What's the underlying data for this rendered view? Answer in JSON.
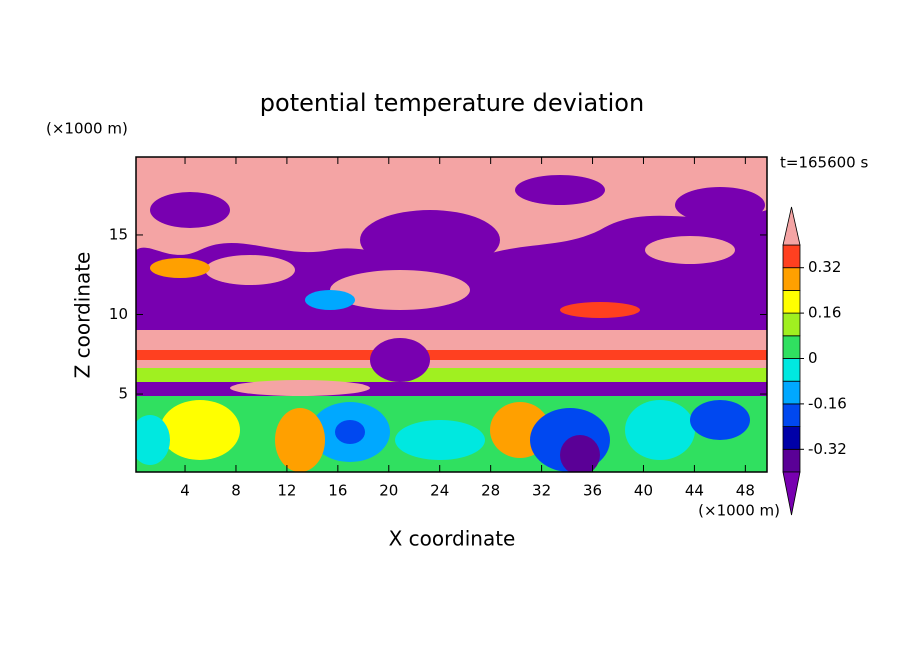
{
  "chart_data": {
    "type": "contour",
    "title": "potential temperature deviation",
    "xlabel": "X coordinate",
    "ylabel": "Z coordinate",
    "x_unit": "(×1000 m)",
    "y_unit": "(×1000 m)",
    "time_label": "t=165600 s",
    "xlim": [
      0.15,
      49.7
    ],
    "ylim": [
      0.1,
      19.9
    ],
    "xticks": [
      4,
      8,
      12,
      16,
      20,
      24,
      28,
      32,
      36,
      40,
      44,
      48
    ],
    "yticks": [
      5,
      10,
      15
    ],
    "levels": [
      -0.4,
      -0.32,
      -0.24,
      -0.16,
      -0.08,
      0,
      0.08,
      0.16,
      0.24,
      0.32,
      0.4
    ],
    "level_colors": [
      "#5a0096",
      "#0000a8",
      "#0048f0",
      "#00a8ff",
      "#00e8e0",
      "#30e060",
      "#a0f020",
      "#ffff00",
      "#ffa000",
      "#ff4020"
    ],
    "under_color": "#7800b0",
    "over_color": "#f4a4a4",
    "colorbar_ticks": [
      0.32,
      0.16,
      0,
      -0.16,
      -0.32
    ]
  }
}
